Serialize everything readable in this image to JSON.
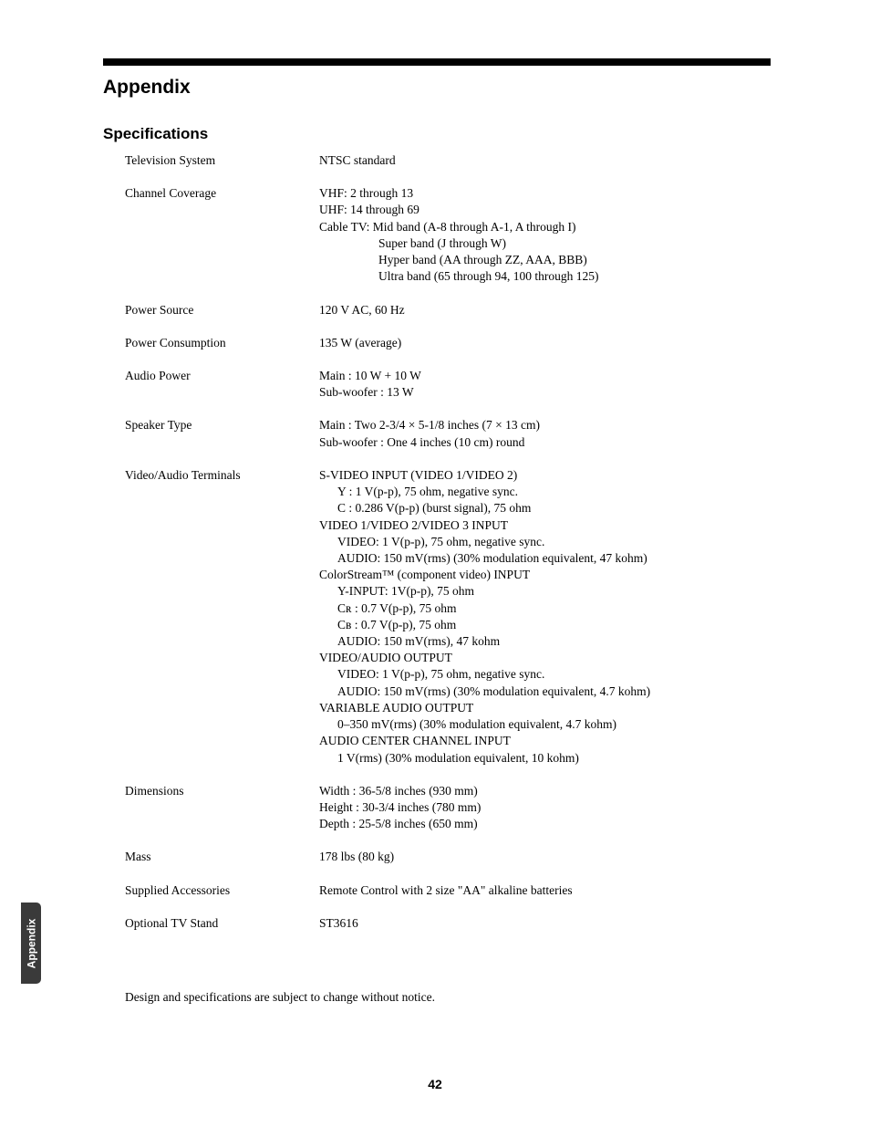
{
  "header": {
    "appendix_title": "Appendix",
    "specifications_title": "Specifications"
  },
  "specs": {
    "tv_system": {
      "label": "Television System",
      "value": "NTSC standard"
    },
    "channel_coverage": {
      "label": "Channel Coverage",
      "lines": [
        "VHF: 2 through 13",
        "UHF: 14 through 69",
        "Cable TV:   Mid band (A-8 through A-1, A through I)"
      ],
      "indented": [
        "Super band (J through W)",
        "Hyper band (AA through ZZ, AAA, BBB)",
        "Ultra band (65 through 94, 100 through 125)"
      ]
    },
    "power_source": {
      "label": "Power Source",
      "value": "120 V AC, 60 Hz"
    },
    "power_consumption": {
      "label": "Power Consumption",
      "value": "135 W (average)"
    },
    "audio_power": {
      "label": "Audio Power",
      "lines": [
        "Main : 10 W + 10 W",
        "Sub-woofer : 13 W"
      ]
    },
    "speaker_type": {
      "label": "Speaker Type",
      "lines": [
        "Main : Two 2-3/4 × 5-1/8 inches (7 × 13 cm)",
        "Sub-woofer : One 4 inches (10 cm) round"
      ]
    },
    "video_audio_terminals": {
      "label": "Video/Audio Terminals",
      "groups": [
        {
          "head": "S-VIDEO INPUT (VIDEO 1/VIDEO 2)",
          "items": [
            "Y : 1 V(p-p), 75 ohm, negative sync.",
            "C : 0.286 V(p-p) (burst signal), 75 ohm"
          ]
        },
        {
          "head": "VIDEO 1/VIDEO 2/VIDEO 3 INPUT",
          "items": [
            "VIDEO: 1 V(p-p), 75 ohm, negative sync.",
            "AUDIO: 150 mV(rms) (30% modulation equivalent, 47 kohm)"
          ]
        },
        {
          "head": "ColorStream™ (component video) INPUT",
          "items": [
            "Y-INPUT: 1V(p-p), 75 ohm",
            "Cʀ : 0.7 V(p-p), 75 ohm",
            "Cʙ : 0.7 V(p-p), 75 ohm",
            "AUDIO: 150 mV(rms), 47 kohm"
          ]
        },
        {
          "head": "VIDEO/AUDIO OUTPUT",
          "items": [
            "VIDEO: 1 V(p-p), 75 ohm, negative sync.",
            "AUDIO: 150 mV(rms) (30% modulation equivalent, 4.7 kohm)"
          ]
        },
        {
          "head": "VARIABLE AUDIO OUTPUT",
          "items": [
            "0–350 mV(rms) (30% modulation equivalent, 4.7 kohm)"
          ]
        },
        {
          "head": "AUDIO CENTER CHANNEL INPUT",
          "items": [
            "1 V(rms) (30% modulation equivalent, 10 kohm)"
          ]
        }
      ]
    },
    "dimensions": {
      "label": "Dimensions",
      "lines": [
        "Width  : 36-5/8 inches (930 mm)",
        "Height : 30-3/4 inches (780 mm)",
        "Depth  : 25-5/8 inches (650 mm)"
      ]
    },
    "mass": {
      "label": "Mass",
      "value": "178 lbs (80 kg)"
    },
    "supplied_accessories": {
      "label": "Supplied Accessories",
      "value": "Remote Control with 2 size \"AA\" alkaline batteries"
    },
    "optional_tv_stand": {
      "label": "Optional TV Stand",
      "value": "ST3616"
    }
  },
  "footer_note": "Design and specifications are subject to change without notice.",
  "side_tab": "Appendix",
  "page_number": "42"
}
